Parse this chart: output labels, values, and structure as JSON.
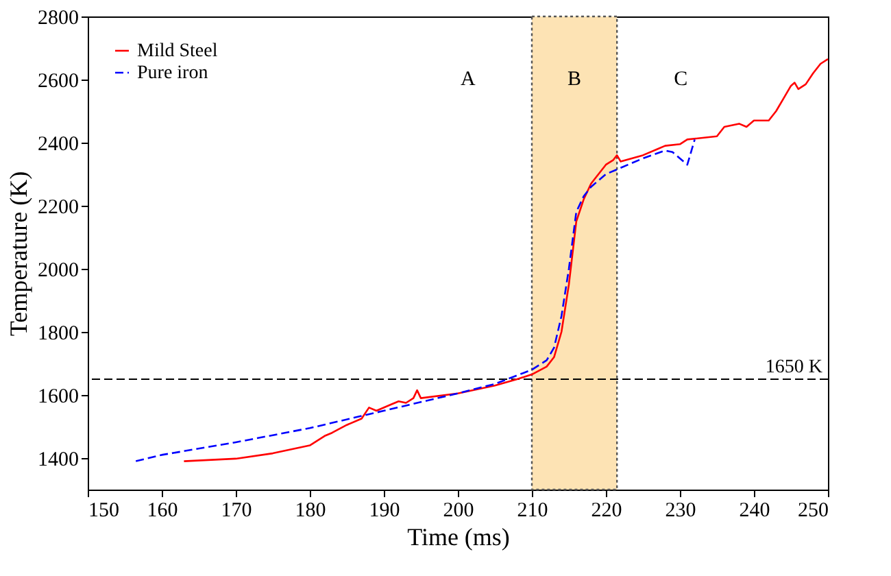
{
  "chart_data": {
    "type": "line",
    "xlabel": "Time (ms)",
    "ylabel": "Temperature (K)",
    "xlim": [
      150,
      250
    ],
    "xticks": [
      150,
      160,
      170,
      180,
      190,
      200,
      210,
      220,
      230,
      240,
      250
    ],
    "ylim": [
      1300,
      2800
    ],
    "yticks": [
      1400,
      1600,
      1800,
      2000,
      2200,
      2400,
      2600,
      2800
    ],
    "grid": false,
    "legend": "top left",
    "series": [
      {
        "name": "Mild Steel",
        "color": "#ff0000",
        "line_style": "solid",
        "x": [
          163,
          170,
          175,
          180,
          182,
          183,
          185,
          187,
          188,
          189,
          191,
          192,
          193,
          194,
          194.5,
          195,
          200,
          205,
          208,
          210,
          212,
          213,
          214,
          215,
          216,
          217,
          218,
          219,
          220,
          221,
          221.5,
          222,
          225,
          227,
          228,
          230,
          231,
          235,
          236,
          238,
          239,
          240,
          242,
          243,
          244,
          245,
          245.5,
          246,
          247,
          248,
          249,
          250
        ],
        "values": [
          1390,
          1398,
          1415,
          1440,
          1470,
          1480,
          1505,
          1525,
          1560,
          1550,
          1570,
          1580,
          1575,
          1590,
          1615,
          1590,
          1605,
          1630,
          1650,
          1665,
          1690,
          1720,
          1800,
          1950,
          2150,
          2220,
          2270,
          2300,
          2330,
          2345,
          2360,
          2340,
          2360,
          2380,
          2390,
          2395,
          2410,
          2420,
          2450,
          2460,
          2450,
          2470,
          2470,
          2500,
          2540,
          2580,
          2590,
          2570,
          2585,
          2620,
          2650,
          2665
        ]
      },
      {
        "name": "Pure iron",
        "color": "#0000ff",
        "line_style": "dashed",
        "x": [
          156.5,
          160,
          170,
          180,
          190,
          200,
          205,
          210,
          212,
          213,
          214,
          215,
          216,
          217,
          218,
          220,
          222,
          225,
          228,
          229,
          230,
          231,
          232
        ],
        "values": [
          1390,
          1410,
          1450,
          1495,
          1550,
          1605,
          1635,
          1680,
          1710,
          1750,
          1850,
          2000,
          2180,
          2230,
          2260,
          2300,
          2320,
          2350,
          2375,
          2370,
          2350,
          2330,
          2410
        ]
      }
    ],
    "ref_lines": [
      {
        "axis": "y",
        "value": 1650,
        "label": "1650 K",
        "color": "#000000",
        "line_style": "dashed"
      }
    ],
    "bands": [
      {
        "axis": "x",
        "from": 210,
        "to": 221.5,
        "color": "#fde3b4"
      }
    ],
    "annotations": [
      "A",
      "B",
      "C"
    ]
  }
}
